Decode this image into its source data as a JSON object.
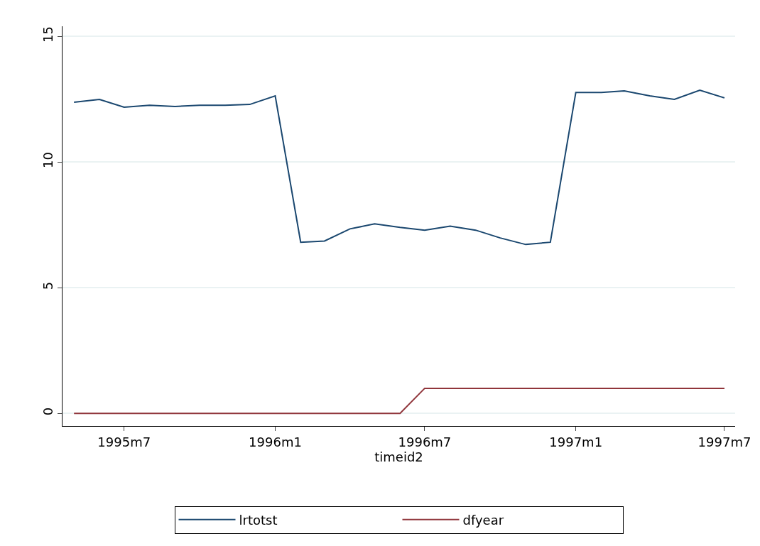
{
  "chart_data": {
    "type": "line",
    "xlabel": "timeid2",
    "x": [
      "1995-05",
      "1995-06",
      "1995-07",
      "1995-08",
      "1995-09",
      "1995-10",
      "1995-11",
      "1995-12",
      "1996-01",
      "1996-02",
      "1996-03",
      "1996-04",
      "1996-05",
      "1996-06",
      "1996-07",
      "1996-08",
      "1996-09",
      "1996-10",
      "1996-11",
      "1996-12",
      "1997-01",
      "1997-02",
      "1997-03",
      "1997-04",
      "1997-05",
      "1997-06",
      "1997-07"
    ],
    "series": [
      {
        "name": "lrtotst",
        "color": "#1a476f",
        "values": [
          12.38,
          12.49,
          12.18,
          12.26,
          12.21,
          12.26,
          12.26,
          12.29,
          12.63,
          6.81,
          6.86,
          7.34,
          7.54,
          7.4,
          7.29,
          7.45,
          7.29,
          6.98,
          6.72,
          6.81,
          12.77,
          12.77,
          12.83,
          12.63,
          12.49,
          12.86,
          12.55
        ]
      },
      {
        "name": "dfyear",
        "color": "#90353b",
        "values": [
          0,
          0,
          0,
          0,
          0,
          0,
          0,
          0,
          0,
          0,
          0,
          0,
          0,
          0,
          1,
          1,
          1,
          1,
          1,
          1,
          1,
          1,
          1,
          1,
          1,
          1,
          1
        ]
      }
    ],
    "xlim": [
      "1995-04-17",
      "1997-07-14"
    ],
    "xticks": [
      {
        "value": "1995-07",
        "label": "1995m7"
      },
      {
        "value": "1996-01",
        "label": "1996m1"
      },
      {
        "value": "1996-07",
        "label": "1996m7"
      },
      {
        "value": "1997-01",
        "label": "1997m1"
      },
      {
        "value": "1997-07",
        "label": "1997m7"
      }
    ],
    "ylim": [
      -0.5,
      15.4
    ],
    "yticks": [
      0,
      5,
      10,
      15
    ],
    "grid": "y",
    "legend": "bottom",
    "marker": "none",
    "line_style": "solid"
  }
}
